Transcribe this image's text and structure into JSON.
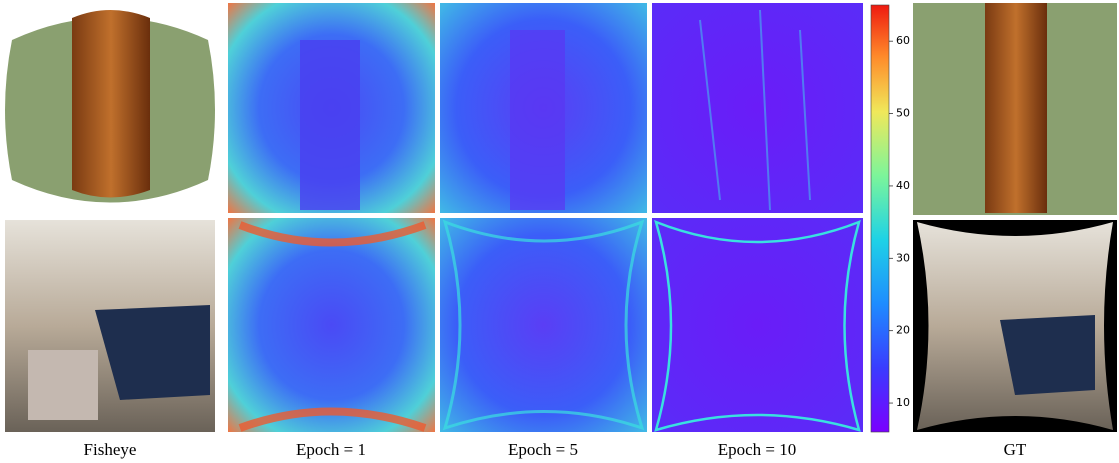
{
  "columns": [
    {
      "label": "Fisheye"
    },
    {
      "label": "Epoch = 1"
    },
    {
      "label": "Epoch = 5"
    },
    {
      "label": "Epoch = 10"
    },
    {
      "label": "GT"
    }
  ],
  "colorbar": {
    "lim": [
      6,
      65
    ],
    "ticks": [
      10,
      20,
      30,
      40,
      50,
      60
    ]
  }
}
